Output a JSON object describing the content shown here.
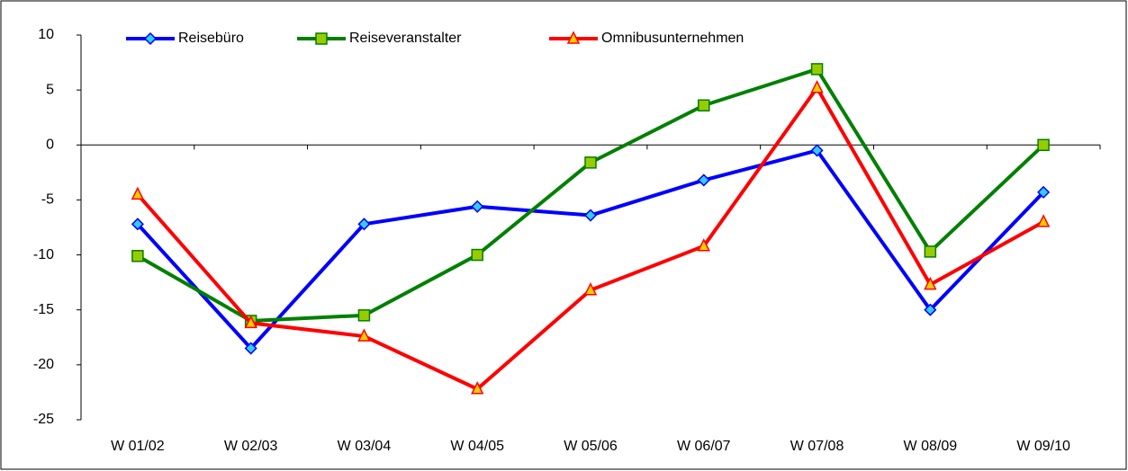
{
  "chart_data": {
    "type": "line",
    "categories": [
      "W 01/02",
      "W 02/03",
      "W 03/04",
      "W 04/05",
      "W 05/06",
      "W 06/07",
      "W 07/08",
      "W 08/09",
      "W 09/10"
    ],
    "series": [
      {
        "name": "Reisebüro",
        "color": "#0000ff",
        "marker": "diamond",
        "marker_color": "#33ccff",
        "values": [
          -7.2,
          -18.5,
          -7.2,
          -5.6,
          -6.4,
          -3.2,
          -0.5,
          -15.0,
          -4.3
        ]
      },
      {
        "name": "Reiseveranstalter",
        "color": "#008000",
        "marker": "square",
        "marker_color": "#99cc00",
        "values": [
          -10.1,
          -16.0,
          -15.5,
          -10.0,
          -1.6,
          3.6,
          6.9,
          -9.7,
          0
        ]
      },
      {
        "name": "Omnibusunternehmen",
        "color": "#ff0000",
        "marker": "triangle",
        "marker_color": "#ffcc00",
        "values": [
          -4.5,
          -16.2,
          -17.4,
          -22.2,
          -13.2,
          -9.2,
          5.2,
          -12.7,
          -7.0
        ]
      }
    ],
    "ylim": [
      -25,
      10
    ],
    "yticks": [
      -25,
      -20,
      -15,
      -10,
      -5,
      0,
      5,
      10
    ],
    "legend": "top"
  }
}
